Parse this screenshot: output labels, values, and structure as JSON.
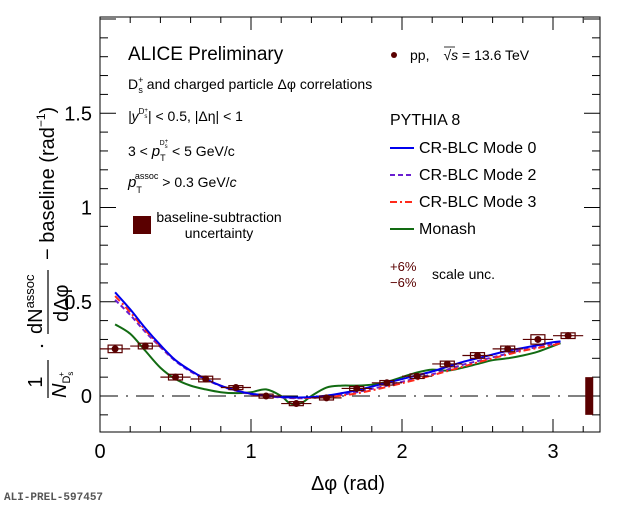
{
  "chart_data": {
    "type": "scatter",
    "title": "ALICE Preliminary",
    "xlabel": "Δφ (rad)",
    "ylabel_parts": {
      "frac1_num": "1",
      "frac1_den": "N",
      "frac1_den_sub": "D",
      "frac1_den_subsub": "s",
      "frac1_den_sup": "+",
      "frac2_num": "dN",
      "frac2_num_sup": "assoc",
      "frac2_den": "dΔφ",
      "suffix": "− baseline (rad",
      "suffix_sup": "−1",
      "suffix_end": ")"
    },
    "xlim": [
      0,
      3.3
    ],
    "ylim": [
      -0.2,
      2.0
    ],
    "x_ticks": [
      0,
      1,
      2,
      3
    ],
    "x_tick_labels": [
      "0",
      "1",
      "2",
      "3"
    ],
    "y_ticks": [
      0,
      0.5,
      1,
      1.5
    ],
    "y_tick_labels": [
      "0",
      "0.5",
      "1",
      "1.5"
    ],
    "grid": false,
    "annotations": {
      "line1": "D",
      "line1_rest": " and charged particle   Δφ correlations",
      "line2": "|y",
      "line2_rest": "| < 0.5, |Δη| < 1",
      "line3_a": "3 <  ",
      "line3_p": "p",
      "line3_sub": "T",
      "line3_rest": " < 5 GeV/c",
      "line4_p": "p",
      "line4_sub": "T",
      "line4_sup": "assoc",
      "line4_rest": " > 0.3 GeV/",
      "line4_c": "c",
      "ds_label": "D",
      "ds_sub": "s",
      "ds_sup": "+",
      "baseline_label_1": "baseline-subtraction",
      "baseline_label_2": "uncertainty",
      "scale_plus": "+6%",
      "scale_minus": "−6%",
      "scale_label": "scale unc.",
      "watermark": "ALI-PREL-597457"
    },
    "legend": {
      "data_label_a": "pp,",
      "data_label_sqrt": "√",
      "data_label_s": "s",
      "data_label_rest": " = 13.6 TeV",
      "model_header": "PYTHIA 8",
      "entries": [
        {
          "name": "CR-BLC Mode 0",
          "color": "#0000ee",
          "dash": "solid"
        },
        {
          "name": "CR-BLC Mode 2",
          "color": "#6a1fd0",
          "dash": "dashed"
        },
        {
          "name": "CR-BLC Mode 3",
          "color": "#ff2a1a",
          "dash": "dashdot"
        },
        {
          "name": "Monash",
          "color": "#126b12",
          "dash": "solid"
        }
      ],
      "placement": "top-right"
    },
    "data": {
      "name": "pp, √s = 13.6 TeV",
      "color": "#5a0000",
      "x": [
        0.1,
        0.3,
        0.5,
        0.7,
        0.9,
        1.1,
        1.3,
        1.5,
        1.7,
        1.9,
        2.1,
        2.3,
        2.5,
        2.7,
        2.9,
        3.1
      ],
      "y": [
        0.25,
        0.265,
        0.1,
        0.09,
        0.045,
        0.0,
        -0.04,
        -0.01,
        0.04,
        0.07,
        0.105,
        0.17,
        0.215,
        0.25,
        0.3,
        0.32
      ],
      "x_err": 0.1,
      "y_sys": [
        0.02,
        0.015,
        0.015,
        0.015,
        0.01,
        0.01,
        0.01,
        0.01,
        0.01,
        0.012,
        0.012,
        0.015,
        0.015,
        0.015,
        0.025,
        0.015
      ]
    },
    "baseline_uncertainty": {
      "x": 3.24,
      "low": -0.1,
      "high": 0.1,
      "color": "#5a0000"
    },
    "series": [
      {
        "name": "CR-BLC Mode 0",
        "color": "#0000ee",
        "x": [
          0.1,
          0.2,
          0.3,
          0.4,
          0.5,
          0.6,
          0.7,
          0.8,
          0.9,
          1.0,
          1.1,
          1.2,
          1.3,
          1.4,
          1.5,
          1.6,
          1.7,
          1.8,
          1.9,
          2.0,
          2.1,
          2.2,
          2.3,
          2.4,
          2.5,
          2.6,
          2.7,
          2.8,
          2.9,
          3.0,
          3.05
        ],
        "y": [
          0.55,
          0.46,
          0.36,
          0.27,
          0.19,
          0.135,
          0.09,
          0.055,
          0.03,
          0.012,
          0.003,
          -0.005,
          -0.008,
          -0.006,
          0.002,
          0.015,
          0.03,
          0.05,
          0.07,
          0.09,
          0.11,
          0.13,
          0.155,
          0.18,
          0.2,
          0.22,
          0.24,
          0.255,
          0.27,
          0.285,
          0.29
        ]
      },
      {
        "name": "CR-BLC Mode 2",
        "color": "#6a1fd0",
        "x": [
          0.1,
          0.2,
          0.3,
          0.4,
          0.5,
          0.6,
          0.7,
          0.8,
          0.9,
          1.0,
          1.1,
          1.2,
          1.3,
          1.4,
          1.5,
          1.6,
          1.7,
          1.8,
          1.9,
          2.0,
          2.1,
          2.2,
          2.3,
          2.4,
          2.5,
          2.6,
          2.7,
          2.8,
          2.9,
          3.0,
          3.05
        ],
        "y": [
          0.51,
          0.43,
          0.34,
          0.26,
          0.185,
          0.13,
          0.088,
          0.053,
          0.028,
          0.01,
          0.0,
          -0.008,
          -0.012,
          -0.01,
          -0.004,
          0.006,
          0.02,
          0.038,
          0.055,
          0.075,
          0.095,
          0.115,
          0.14,
          0.165,
          0.185,
          0.205,
          0.225,
          0.245,
          0.26,
          0.275,
          0.285
        ]
      },
      {
        "name": "CR-BLC Mode 3",
        "color": "#ff2a1a",
        "x": [
          0.1,
          0.2,
          0.3,
          0.4,
          0.5,
          0.6,
          0.7,
          0.8,
          0.9,
          1.0,
          1.1,
          1.2,
          1.3,
          1.4,
          1.5,
          1.6,
          1.7,
          1.8,
          1.9,
          2.0,
          2.1,
          2.2,
          2.3,
          2.4,
          2.5,
          2.6,
          2.7,
          2.8,
          2.9,
          3.0,
          3.05
        ],
        "y": [
          0.53,
          0.445,
          0.35,
          0.265,
          0.19,
          0.135,
          0.09,
          0.055,
          0.03,
          0.012,
          0.002,
          -0.006,
          -0.01,
          -0.01,
          -0.006,
          0.002,
          0.014,
          0.03,
          0.048,
          0.068,
          0.088,
          0.11,
          0.132,
          0.155,
          0.178,
          0.2,
          0.22,
          0.24,
          0.255,
          0.27,
          0.28
        ]
      },
      {
        "name": "Monash",
        "color": "#126b12",
        "x": [
          0.1,
          0.2,
          0.3,
          0.4,
          0.5,
          0.6,
          0.7,
          0.8,
          0.9,
          1.0,
          1.1,
          1.2,
          1.25,
          1.3,
          1.35,
          1.4,
          1.5,
          1.6,
          1.7,
          1.8,
          1.9,
          2.0,
          2.1,
          2.2,
          2.3,
          2.4,
          2.5,
          2.6,
          2.7,
          2.8,
          2.9,
          3.0,
          3.05
        ],
        "y": [
          0.38,
          0.33,
          0.24,
          0.15,
          0.09,
          0.055,
          0.035,
          0.02,
          0.015,
          0.02,
          0.035,
          0.0,
          -0.035,
          -0.045,
          -0.03,
          0.0,
          0.045,
          0.055,
          0.055,
          0.06,
          0.075,
          0.1,
          0.125,
          0.14,
          0.135,
          0.15,
          0.17,
          0.19,
          0.2,
          0.215,
          0.235,
          0.265,
          0.28
        ]
      }
    ]
  }
}
